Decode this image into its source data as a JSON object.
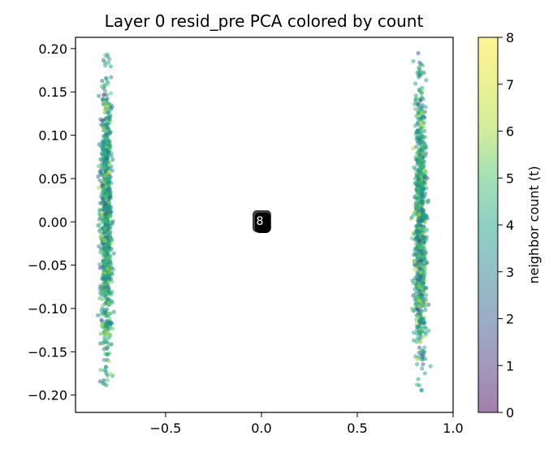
{
  "chart_data": {
    "type": "scatter",
    "title": "Layer 0 resid_pre PCA colored by count",
    "xlabel": "",
    "ylabel": "",
    "xlim": [
      -0.97,
      1.0
    ],
    "ylim": [
      -0.22,
      0.213
    ],
    "x_ticks": [
      -0.5,
      0.0,
      0.5,
      1.0
    ],
    "x_tick_labels": [
      "−0.5",
      "0.0",
      "0.5",
      "1.0"
    ],
    "y_ticks": [
      0.2,
      0.15,
      0.1,
      0.05,
      0.0,
      -0.05,
      -0.1,
      -0.15,
      -0.2
    ],
    "y_tick_labels": [
      "0.20",
      "0.15",
      "0.10",
      "0.05",
      "0.00",
      "−0.05",
      "−0.10",
      "−0.15",
      "−0.20"
    ],
    "grid": false,
    "colormap": "viridis",
    "point_alpha": 0.5,
    "clusters": [
      {
        "x_center": -0.81,
        "x_spread": 0.035,
        "y_range": [
          -0.2,
          0.195
        ],
        "count": 900
      },
      {
        "x_center": 0.83,
        "x_spread": 0.035,
        "y_range": [
          -0.2,
          0.195
        ],
        "count": 900
      }
    ],
    "center_label": {
      "x": 0.0,
      "y": 0.0,
      "text": "8"
    },
    "colorbar": {
      "label": "neighbor count (t)",
      "range": [
        0,
        8
      ],
      "ticks": [
        0,
        1,
        2,
        3,
        4,
        5,
        6,
        7,
        8
      ],
      "tick_labels": [
        "0",
        "1",
        "2",
        "3",
        "4",
        "5",
        "6",
        "7",
        "8"
      ]
    }
  }
}
